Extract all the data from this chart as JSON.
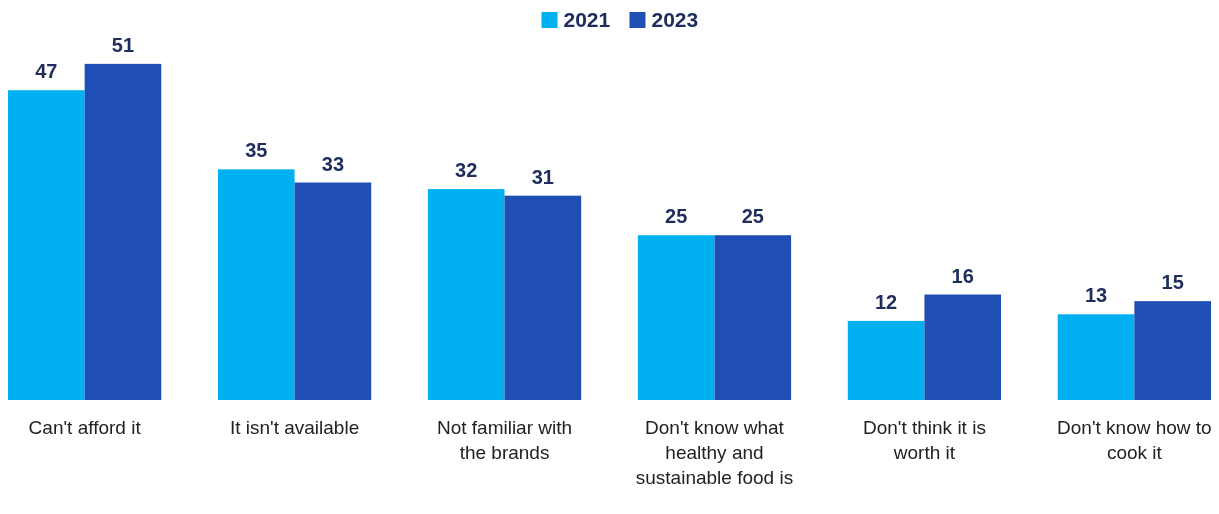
{
  "chart_data": {
    "type": "bar",
    "categories": [
      "Can't afford it",
      "It isn't available",
      "Not familiar with the brands",
      "Don't know what healthy and sustainable food is",
      "Don't think it is worth it",
      "Don't know how to cook it"
    ],
    "series": [
      {
        "name": "2021",
        "color": "#00b0f0",
        "values": [
          47,
          35,
          32,
          25,
          12,
          13
        ]
      },
      {
        "name": "2023",
        "color": "#1f4eb4",
        "values": [
          51,
          33,
          31,
          25,
          16,
          15
        ]
      }
    ],
    "data_labels": true,
    "legend": "top"
  }
}
